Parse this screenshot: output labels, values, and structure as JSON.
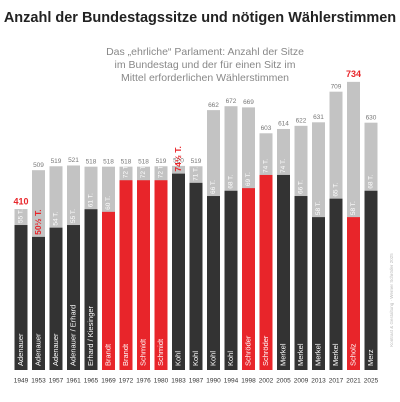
{
  "chart_data": {
    "type": "bar",
    "title": "Anzahl der Bundestagssitze und nötigen Wählerstimmen",
    "subtitle": [
      "Das „ehrliche“ Parlament: Anzahl der Sitze",
      "im Bundestag und der für einen Sitz im",
      "Mittel erforderlichen Wählerstimmen"
    ],
    "credit": "Kontrast & Gestaltung · Werner Schröder 2025",
    "categories": [
      "1949",
      "1953",
      "1957",
      "1961",
      "1965",
      "1969",
      "1972",
      "1976",
      "1980",
      "1983",
      "1987",
      "1990",
      "1994",
      "1998",
      "2002",
      "2005",
      "2009",
      "2013",
      "2017",
      "2021",
      "2025"
    ],
    "chancellors": [
      "Adenauer",
      "Adenauer",
      "Adenauer",
      "Adenauer / Erhard",
      "Erhard / Kiesinger",
      "Brandt",
      "Brandt",
      "Schmidt",
      "Schmidt",
      "Kohl",
      "Kohl",
      "Kohl",
      "Kohl",
      "Schröder",
      "Schröder",
      "Merkel",
      "Merkel",
      "Merkel",
      "Merkel",
      "Scholz",
      "Merz"
    ],
    "highlight_color": "#e8252a",
    "ylim": [
      0,
      940
    ],
    "y2lim": [
      0,
      140
    ],
    "series": [
      {
        "color": "#c3c3c3",
        "values": [
          410,
          509,
          519,
          521,
          518,
          518,
          518,
          518,
          519,
          520,
          519,
          662,
          672,
          669,
          603,
          614,
          622,
          631,
          709,
          734,
          630
        ]
      },
      {
        "axis": "y2",
        "values": [
          55,
          50.5,
          54,
          55,
          61,
          60,
          72,
          72,
          72,
          74.5,
          71,
          66,
          68,
          69,
          74,
          74,
          66,
          58,
          65,
          58,
          68
        ],
        "value_labels": [
          "55 T.",
          "50½ T.",
          "54 T.",
          "55 T.",
          "61 T.",
          "60 T.",
          "72 T.",
          "72 T.",
          "72 T.",
          "74½ T.",
          "71 T.",
          "66 T.",
          "68 T.",
          "69 T.",
          "74 T.",
          "74 T.",
          "66 T.",
          "58 T.",
          "65 T.",
          "58 T.",
          "68 T."
        ],
        "colors": [
          "#333333",
          "#333333",
          "#333333",
          "#333333",
          "#333333",
          "#e8252a",
          "#e8252a",
          "#e8252a",
          "#e8252a",
          "#333333",
          "#333333",
          "#333333",
          "#333333",
          "#e8252a",
          "#e8252a",
          "#333333",
          "#333333",
          "#333333",
          "#333333",
          "#e8252a",
          "#333333"
        ]
      }
    ]
  }
}
